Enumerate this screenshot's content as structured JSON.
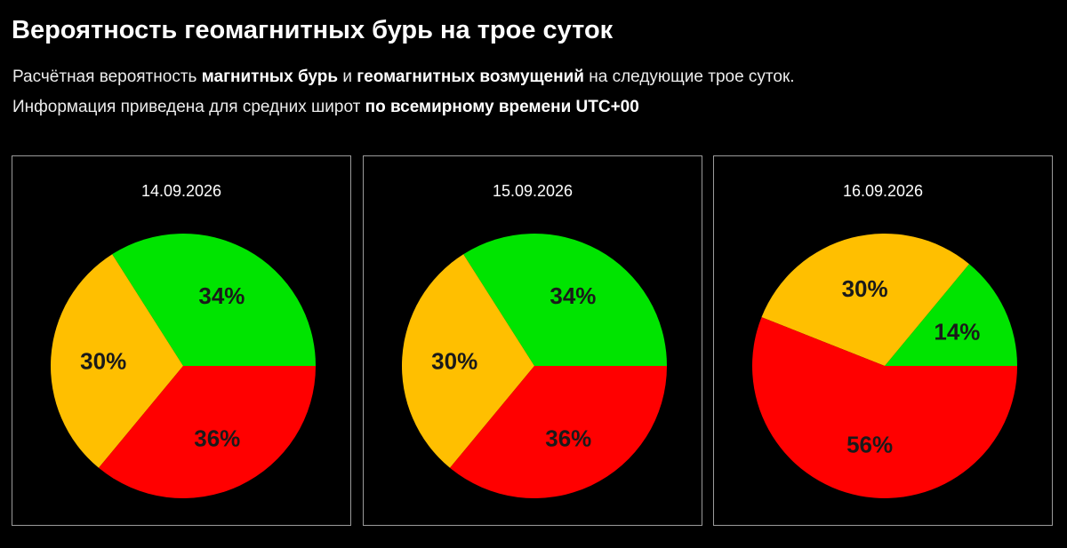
{
  "header": {
    "title": "Вероятность геомагнитных бурь на трое суток",
    "line1": {
      "p1": "Расчётная вероятность ",
      "b1": "магнитных бурь",
      "p2": " и ",
      "b2": "геомагнитных возмущений",
      "p3": " на следующие трое суток."
    },
    "line2": {
      "p1": "Информация приведена для средних широт ",
      "b1": "по всемирному времени UTC+00"
    }
  },
  "colors": {
    "background": "#000000",
    "green": "#00e400",
    "yellow": "#ffbf00",
    "red": "#ff0000",
    "panel_border": "#9a9a9a"
  },
  "chart_data": [
    {
      "type": "pie",
      "title": "14.09.2026",
      "slices": [
        {
          "value": 34,
          "label": "34%",
          "color": "#00e400"
        },
        {
          "value": 30,
          "label": "30%",
          "color": "#ffbf00"
        },
        {
          "value": 36,
          "label": "36%",
          "color": "#ff0000"
        }
      ]
    },
    {
      "type": "pie",
      "title": "15.09.2026",
      "slices": [
        {
          "value": 34,
          "label": "34%",
          "color": "#00e400"
        },
        {
          "value": 30,
          "label": "30%",
          "color": "#ffbf00"
        },
        {
          "value": 36,
          "label": "36%",
          "color": "#ff0000"
        }
      ]
    },
    {
      "type": "pie",
      "title": "16.09.2026",
      "slices": [
        {
          "value": 14,
          "label": "14%",
          "color": "#00e400"
        },
        {
          "value": 30,
          "label": "30%",
          "color": "#ffbf00"
        },
        {
          "value": 56,
          "label": "56%",
          "color": "#ff0000"
        }
      ]
    }
  ]
}
